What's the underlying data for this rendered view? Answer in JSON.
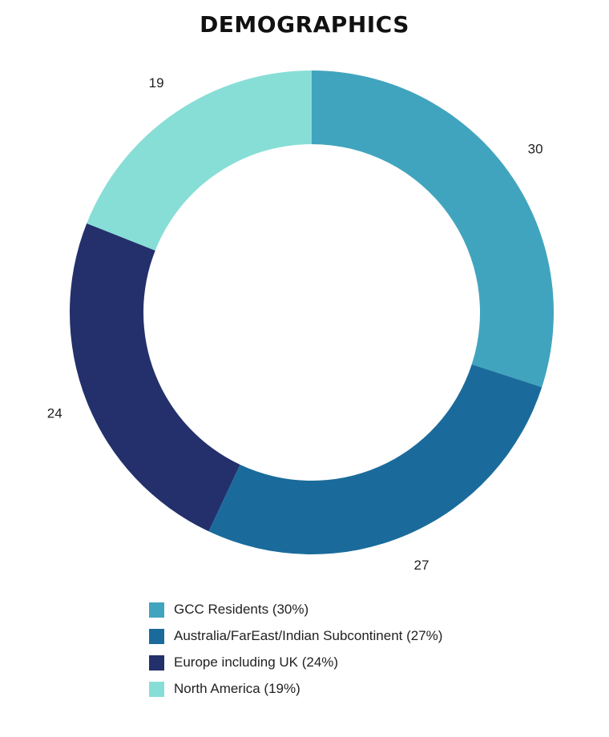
{
  "chart_data": {
    "type": "pie",
    "variant": "donut",
    "title": "DEMOGRAPHICS",
    "categories": [
      "GCC Residents",
      "Australia/FarEast/Indian Subcontinent",
      "Europe including UK",
      "North America"
    ],
    "values": [
      30,
      27,
      24,
      19
    ],
    "data_labels": [
      "30",
      "27",
      "24",
      "19"
    ],
    "colors": [
      "#41a4be",
      "#1a6b9b",
      "#23306b",
      "#87ded6"
    ],
    "legend": {
      "placement": "bottom",
      "entries": [
        "GCC Residents (30%)",
        "Australia/FarEast/Indian Subcontinent (27%)",
        "Europe including UK (24%)",
        "North America (19%)"
      ]
    }
  }
}
